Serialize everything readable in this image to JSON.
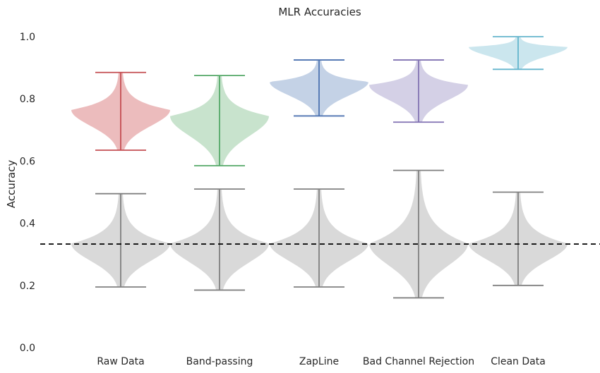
{
  "chart_data": {
    "type": "violin",
    "title": "MLR Accuracies",
    "xlabel": "",
    "ylabel": "Accuracy",
    "ylim": [
      0.0,
      1.0
    ],
    "yticks": [
      0.0,
      0.2,
      0.4,
      0.6,
      0.8,
      1.0
    ],
    "ytick_labels": [
      "0.0",
      "0.2",
      "0.4",
      "0.6",
      "0.8",
      "1.0"
    ],
    "categories": [
      "Raw Data",
      "Band-passing",
      "ZapLine",
      "Bad Channel Rejection",
      "Clean Data"
    ],
    "grid": false,
    "legend": "none",
    "chance_level": 0.333,
    "series": [
      {
        "color": "#c44e52",
        "fill": "#ecb9bb",
        "values": [
          {
            "min": 0.635,
            "max": 0.885,
            "mode": 0.765
          },
          {
            "min": 0.585,
            "max": 0.875,
            "mode": 0.745
          },
          {
            "min": 0.745,
            "max": 0.925,
            "mode": 0.855
          },
          {
            "min": 0.725,
            "max": 0.925,
            "mode": 0.845
          },
          {
            "min": 0.895,
            "max": 1.0,
            "mode": 0.967
          }
        ]
      },
      {
        "color": "#808080",
        "fill": "#d9d9d9",
        "values": [
          {
            "min": 0.195,
            "max": 0.495,
            "mode": 0.335
          },
          {
            "min": 0.185,
            "max": 0.51,
            "mode": 0.335
          },
          {
            "min": 0.195,
            "max": 0.51,
            "mode": 0.335
          },
          {
            "min": 0.16,
            "max": 0.57,
            "mode": 0.335
          },
          {
            "min": 0.2,
            "max": 0.5,
            "mode": 0.335
          }
        ]
      }
    ],
    "colors_by_category": {
      "line": [
        "#c44e52",
        "#55a868",
        "#4c72b0",
        "#8172b2",
        "#64b5cd"
      ],
      "fill": [
        "#ecbcbd",
        "#c8e3cd",
        "#c4d2e6",
        "#d4d0e6",
        "#cbe6ee"
      ]
    }
  }
}
